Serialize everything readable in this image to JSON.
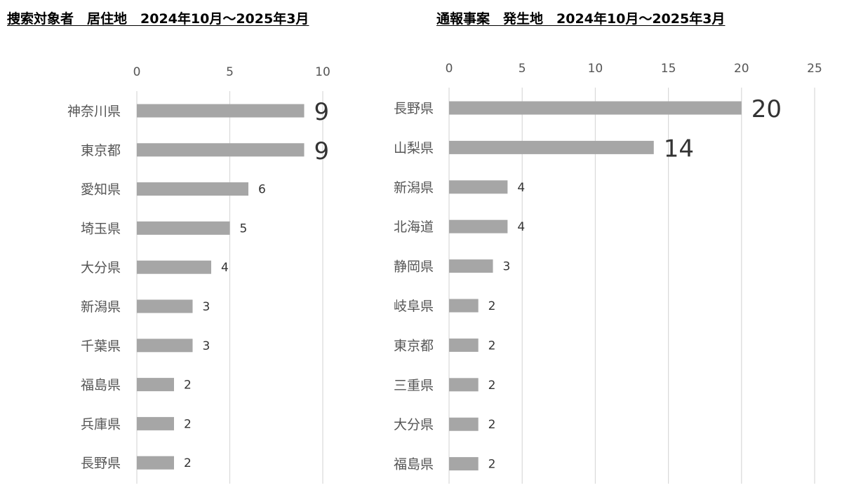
{
  "chart_data": [
    {
      "type": "bar",
      "orientation": "horizontal",
      "title": "捜索対象者　居住地　2024年10月～2025年3月",
      "categories": [
        "神奈川県",
        "東京都",
        "愛知県",
        "埼玉県",
        "大分県",
        "新潟県",
        "千葉県",
        "福島県",
        "兵庫県",
        "長野県"
      ],
      "values": [
        9,
        9,
        6,
        5,
        4,
        3,
        3,
        2,
        2,
        2
      ],
      "xlim": [
        0,
        10
      ],
      "xticks": [
        0,
        5,
        10
      ],
      "grid": true,
      "bar_color": "#a6a6a6",
      "axis_position": "top"
    },
    {
      "type": "bar",
      "orientation": "horizontal",
      "title": "通報事案　発生地　2024年10月～2025年3月",
      "categories": [
        "長野県",
        "山梨県",
        "新潟県",
        "北海道",
        "静岡県",
        "岐阜県",
        "東京都",
        "三重県",
        "大分県",
        "福島県"
      ],
      "values": [
        20,
        14,
        4,
        4,
        3,
        2,
        2,
        2,
        2,
        2
      ],
      "xlim": [
        0,
        25
      ],
      "xticks": [
        0,
        5,
        10,
        15,
        20,
        25
      ],
      "grid": true,
      "bar_color": "#a6a6a6",
      "axis_position": "top"
    }
  ]
}
